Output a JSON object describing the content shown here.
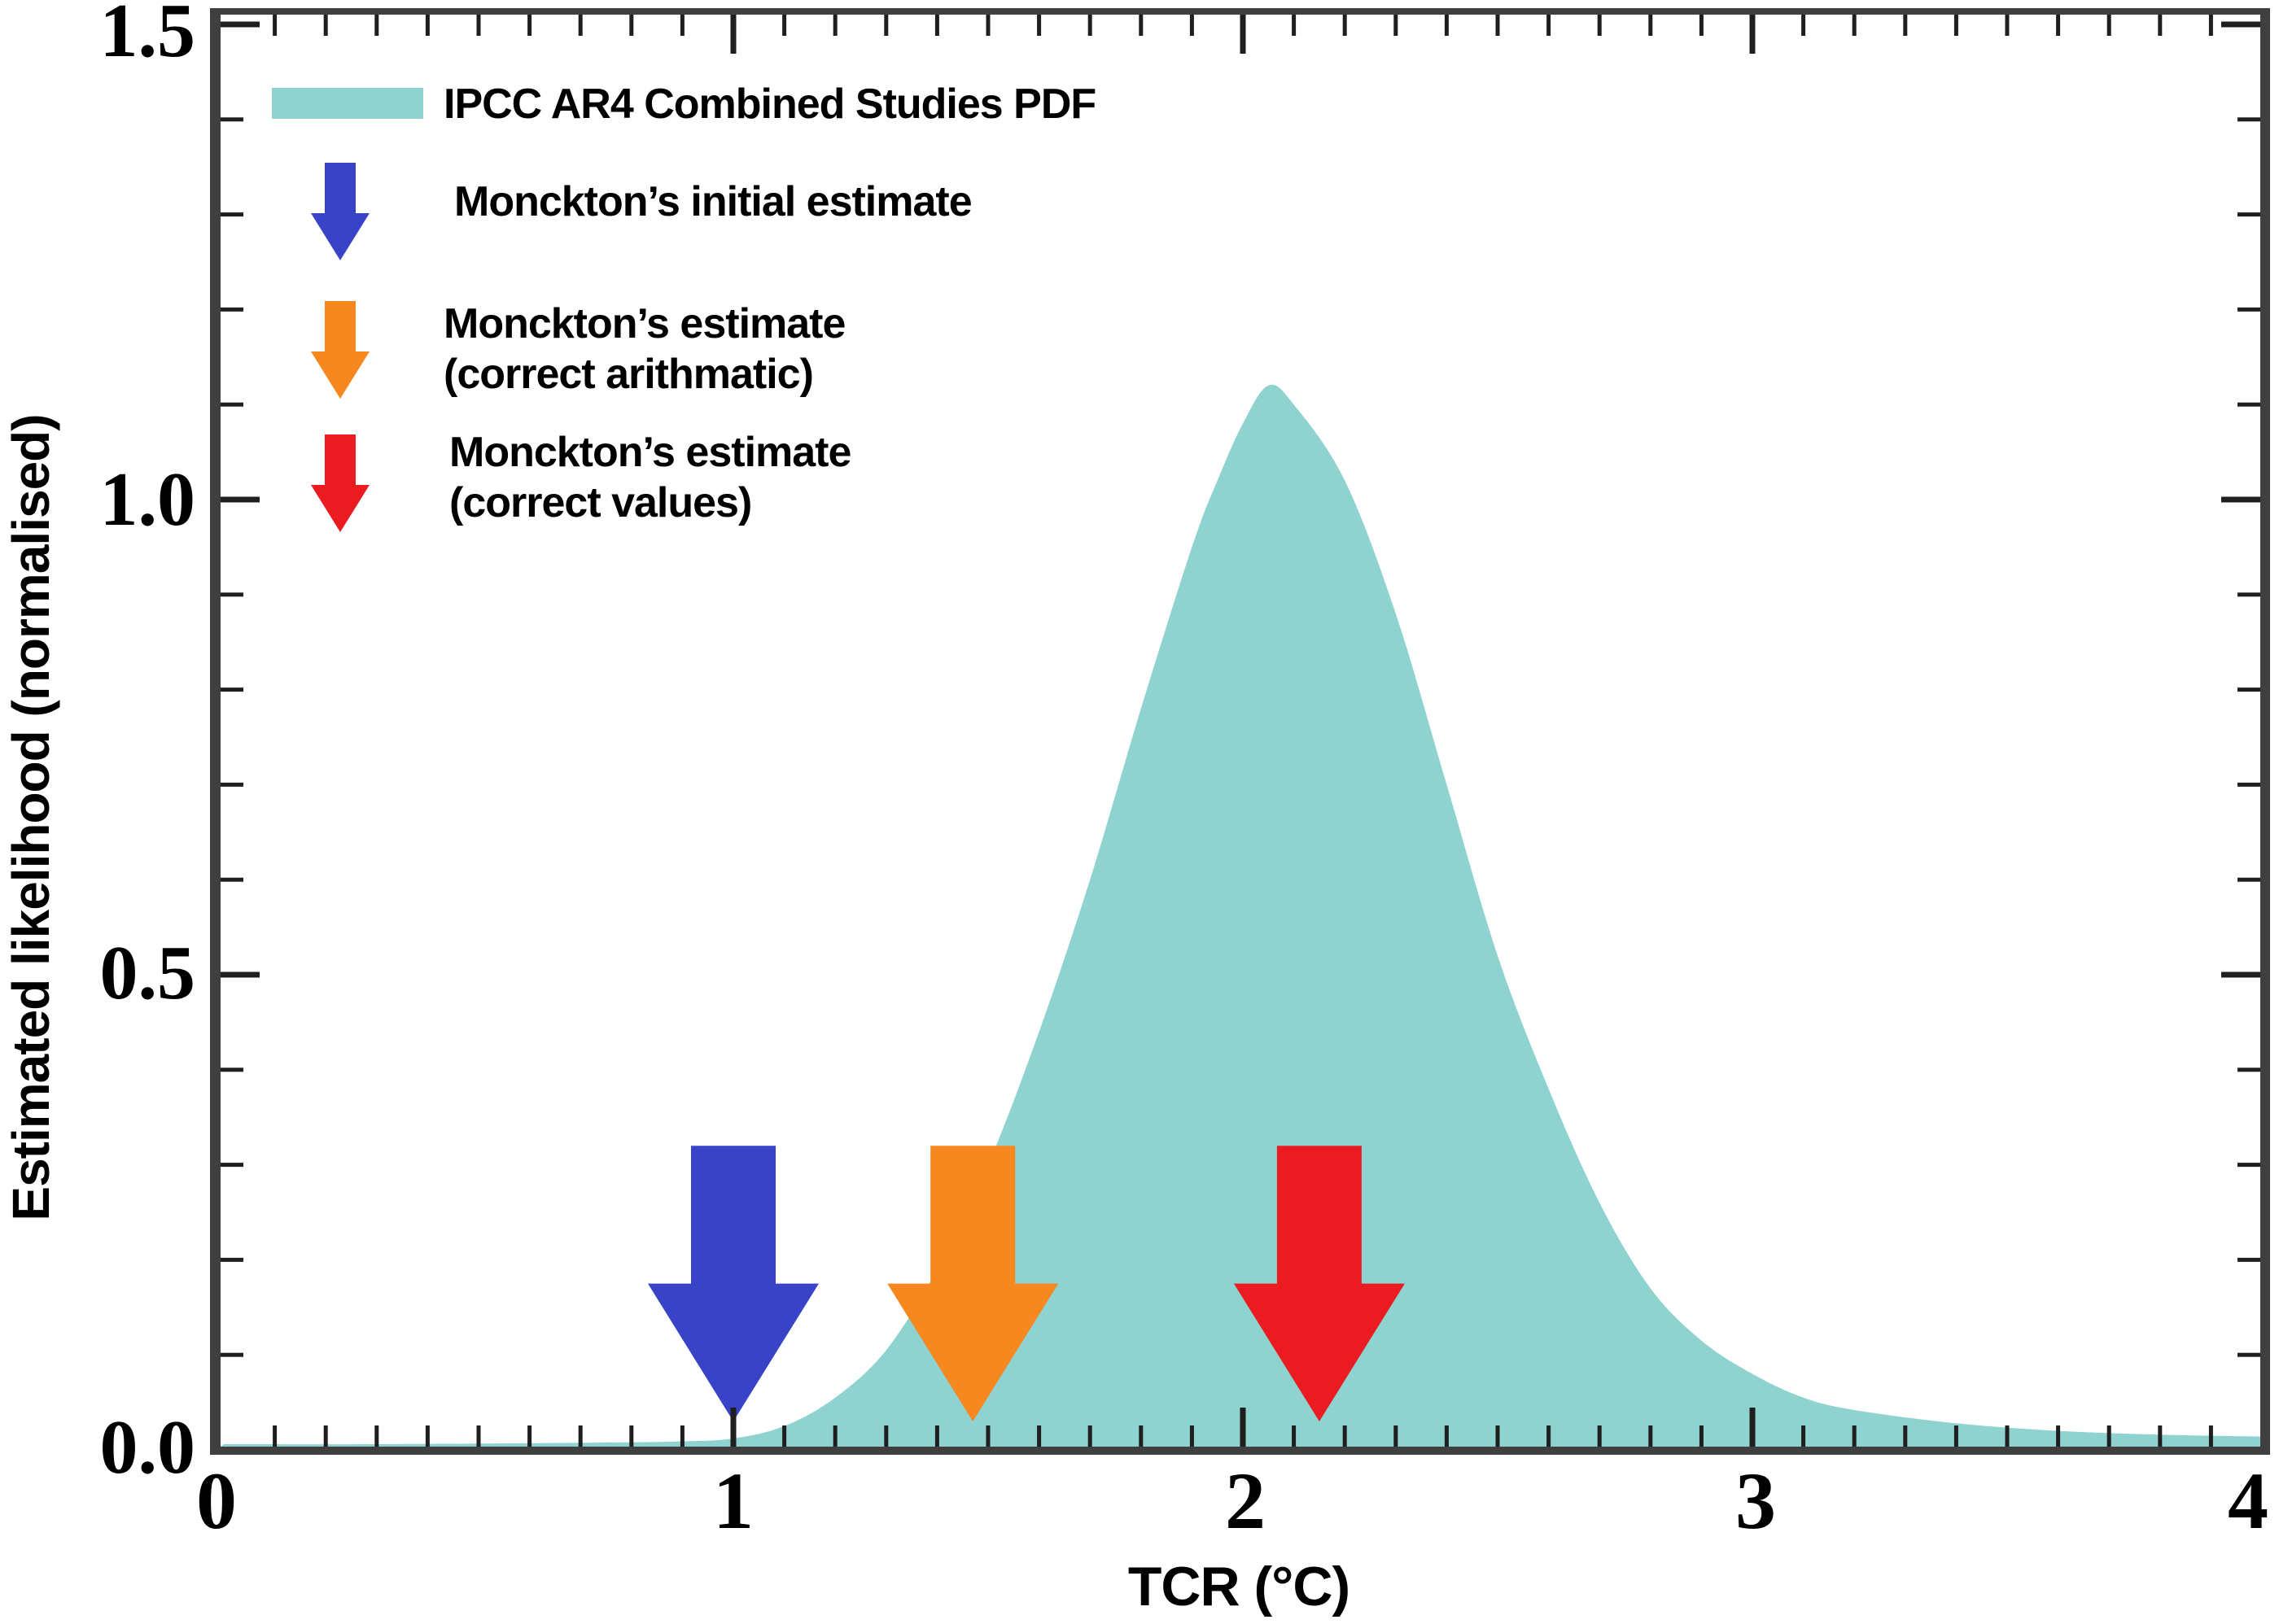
{
  "figure": {
    "background": "#ffffff",
    "axis_color": "#3f3f3f",
    "tick_color": "#1f1f1f"
  },
  "axes": {
    "x": {
      "label": "TCR (°C)",
      "min": 0,
      "max": 4,
      "major_ticks": [
        0,
        1,
        2,
        3,
        4
      ],
      "tick_labels": [
        "0",
        "1",
        "2",
        "3",
        "4"
      ],
      "minor_step": 0.1
    },
    "y": {
      "label": "Estimated likelihood (normalised)",
      "min": 0,
      "max": 1.5,
      "major_ticks": [
        0,
        0.5,
        1.0,
        1.5
      ],
      "tick_labels_top_to_bottom": [
        "1.5",
        "1.0",
        "0.5",
        "0.0"
      ],
      "minor_step": 0.1
    }
  },
  "legend": {
    "items": [
      {
        "marker": "area-swatch",
        "color": "#8ED3D0",
        "lines": [
          "IPCC AR4 Combined Studies PDF"
        ]
      },
      {
        "marker": "down-arrow",
        "color": "#3843C7",
        "lines": [
          "Monckton’s initial estimate"
        ]
      },
      {
        "marker": "down-arrow",
        "color": "#F7871F",
        "lines": [
          "Monckton’s estimate",
          "(correct arithmatic)"
        ]
      },
      {
        "marker": "down-arrow",
        "color": "#EA1C22",
        "lines": [
          "Monckton’s estimate",
          "(correct values)"
        ]
      }
    ]
  },
  "chart_data": {
    "type": "area",
    "title": "",
    "xlabel": "TCR (°C)",
    "ylabel": "Estimated likelihood (normalised)",
    "xlim": [
      0,
      4
    ],
    "ylim": [
      0,
      1.5
    ],
    "grid": false,
    "legend_position": "upper-left",
    "series": [
      {
        "name": "IPCC AR4 Combined Studies PDF",
        "color": "#8ED3D0",
        "points": [
          [
            0.0,
            0.006
          ],
          [
            0.3,
            0.006
          ],
          [
            0.6,
            0.007
          ],
          [
            0.8,
            0.008
          ],
          [
            0.9,
            0.009
          ],
          [
            1.0,
            0.012
          ],
          [
            1.1,
            0.025
          ],
          [
            1.2,
            0.055
          ],
          [
            1.3,
            0.105
          ],
          [
            1.4,
            0.19
          ],
          [
            1.5,
            0.3
          ],
          [
            1.6,
            0.44
          ],
          [
            1.7,
            0.6
          ],
          [
            1.8,
            0.78
          ],
          [
            1.9,
            0.95
          ],
          [
            1.95,
            1.02
          ],
          [
            2.0,
            1.08
          ],
          [
            2.05,
            1.12
          ],
          [
            2.1,
            1.1
          ],
          [
            2.2,
            1.02
          ],
          [
            2.3,
            0.88
          ],
          [
            2.4,
            0.7
          ],
          [
            2.5,
            0.52
          ],
          [
            2.6,
            0.38
          ],
          [
            2.7,
            0.26
          ],
          [
            2.8,
            0.17
          ],
          [
            2.9,
            0.115
          ],
          [
            3.0,
            0.08
          ],
          [
            3.1,
            0.055
          ],
          [
            3.2,
            0.042
          ],
          [
            3.4,
            0.028
          ],
          [
            3.6,
            0.02
          ],
          [
            3.8,
            0.016
          ],
          [
            4.0,
            0.014
          ]
        ]
      }
    ],
    "annotations": [
      {
        "type": "down-arrow",
        "label": "Monckton’s initial estimate",
        "x": 1.0,
        "arrow_top_value": 0.32,
        "arrow_tip_value": 0.03,
        "color": "#3843C7"
      },
      {
        "type": "down-arrow",
        "label": "Monckton’s estimate (correct arithmatic)",
        "x": 1.47,
        "arrow_top_value": 0.32,
        "arrow_tip_value": 0.03,
        "color": "#F7871F"
      },
      {
        "type": "down-arrow",
        "label": "Monckton’s estimate (correct values)",
        "x": 2.15,
        "arrow_top_value": 0.32,
        "arrow_tip_value": 0.03,
        "color": "#EA1C22"
      }
    ]
  }
}
